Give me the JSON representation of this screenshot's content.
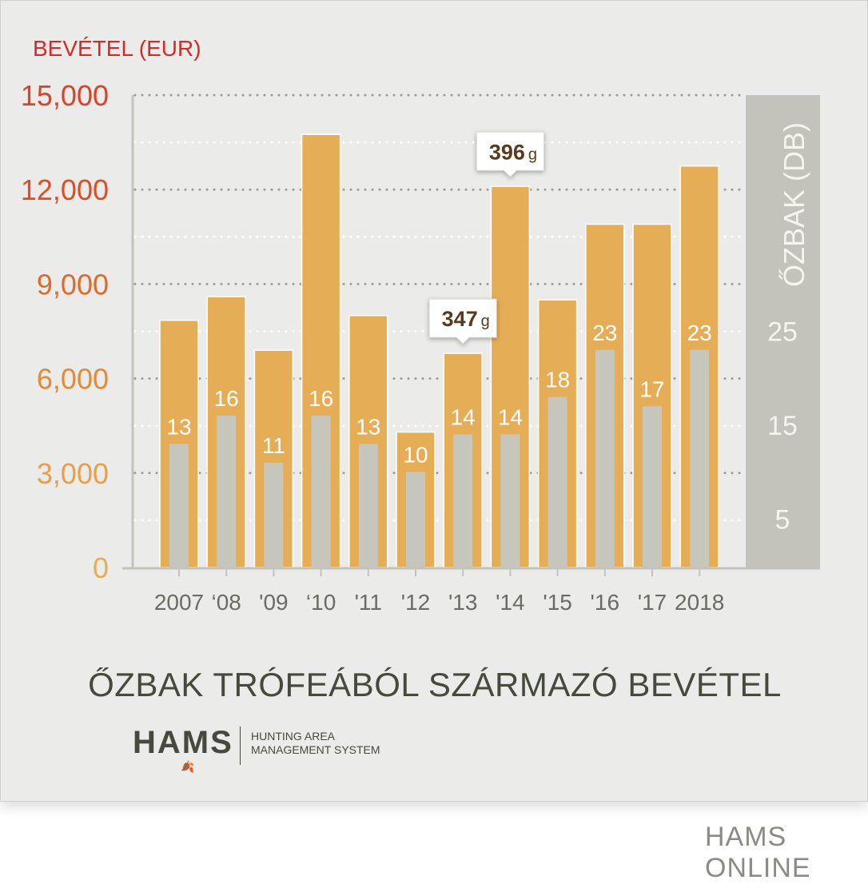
{
  "chart_data": {
    "type": "bar",
    "title": "ŐZBAK TRÓFEÁBÓL SZÁRMAZÓ BEVÉTEL",
    "ylabel": "BEVÉTEL (EUR)",
    "y2label": "ŐZBAK (DB)",
    "categories": [
      "2007",
      "‘08",
      "'09",
      "‘10",
      "'11",
      "'12",
      "'13",
      "'14",
      "'15",
      "'16",
      "'17",
      "2018"
    ],
    "ylim": [
      0,
      15000
    ],
    "yticks": [
      "0",
      "3,000",
      "6,000",
      "9,000",
      "12,000",
      "15,000"
    ],
    "y2ticks": [
      "5",
      "15",
      "25"
    ],
    "series": [
      {
        "name": "Bevétel (EUR)",
        "axis": "left",
        "values": [
          7850,
          8600,
          6900,
          13750,
          8000,
          4300,
          6800,
          12100,
          8500,
          10900,
          10900,
          12750
        ]
      },
      {
        "name": "Őzbak (db)",
        "axis": "right",
        "values": [
          13,
          16,
          11,
          16,
          13,
          10,
          14,
          14,
          18,
          23,
          17,
          23
        ]
      }
    ],
    "annotations": [
      {
        "category": "'13",
        "value": "347",
        "unit": "g"
      },
      {
        "category": "'14",
        "value": "396",
        "unit": "g"
      }
    ]
  },
  "logo": {
    "name": "HAMS",
    "line1": "HUNTING AREA",
    "line2": "MANAGEMENT SYSTEM"
  },
  "footer": {
    "text": "HAMS ONLINE"
  }
}
